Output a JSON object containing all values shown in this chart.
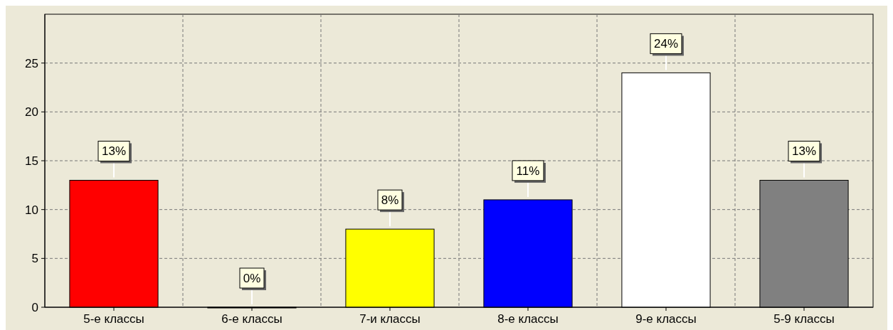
{
  "chart_data": {
    "type": "bar",
    "categories": [
      "5-е классы",
      "6-е классы",
      "7-и классы",
      "8-е классы",
      "9-е классы",
      "5-9 классы"
    ],
    "values": [
      13,
      0,
      8,
      11,
      24,
      13
    ],
    "value_labels": [
      "13%",
      "0%",
      "8%",
      "11%",
      "24%",
      "13%"
    ],
    "colors": [
      "#ff0000",
      "#004000",
      "#ffff00",
      "#0000ff",
      "#ffffff",
      "#808080"
    ],
    "ylim": [
      0,
      30
    ],
    "yticks": [
      0,
      5,
      10,
      15,
      20,
      25
    ],
    "grid": true
  }
}
